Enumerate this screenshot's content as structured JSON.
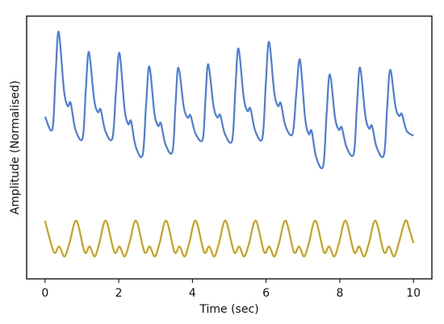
{
  "chart_data": {
    "type": "line",
    "xlabel": "Time (sec)",
    "ylabel": "Amplitude (Normalised)",
    "xlim": [
      -0.5,
      10.5
    ],
    "ylim": [
      -1.1,
      1.25
    ],
    "x_ticks": [
      0,
      2,
      4,
      6,
      8,
      10
    ],
    "x_tick_labels": [
      "0",
      "2",
      "4",
      "6",
      "8",
      "10"
    ],
    "y_ticks_shown": false,
    "grid": false,
    "legend": "none",
    "series": [
      {
        "color": "#4a7de0",
        "style": "pulsatile waveform (upper trace)",
        "peaks": [
          [
            0.37,
            1.11
          ],
          [
            1.19,
            0.93
          ],
          [
            2.02,
            0.92
          ],
          [
            2.83,
            0.8
          ],
          [
            3.62,
            0.79
          ],
          [
            4.43,
            0.82
          ],
          [
            5.25,
            0.96
          ],
          [
            6.08,
            1.02
          ],
          [
            6.92,
            0.86
          ],
          [
            7.73,
            0.73
          ],
          [
            8.55,
            0.79
          ],
          [
            9.37,
            0.77
          ]
        ],
        "troughs": [
          [
            0.2,
            0.24
          ],
          [
            1.02,
            0.16
          ],
          [
            1.83,
            0.16
          ],
          [
            2.65,
            0.01
          ],
          [
            3.46,
            0.04
          ],
          [
            4.28,
            0.15
          ],
          [
            5.08,
            0.14
          ],
          [
            5.9,
            0.16
          ],
          [
            6.72,
            0.2
          ],
          [
            7.55,
            -0.09
          ],
          [
            8.38,
            0.02
          ],
          [
            9.2,
            0.01
          ],
          [
            10.0,
            0.18
          ]
        ],
        "start": [
          0.0,
          0.35
        ]
      },
      {
        "color": "#c9a21b",
        "style": "oscillating waveform (lower trace)",
        "peaks": [
          [
            0.0,
            -0.58
          ],
          [
            0.85,
            -0.58
          ],
          [
            1.65,
            -0.58
          ],
          [
            2.47,
            -0.58
          ],
          [
            3.29,
            -0.58
          ],
          [
            4.09,
            -0.58
          ],
          [
            4.9,
            -0.58
          ],
          [
            5.72,
            -0.58
          ],
          [
            6.53,
            -0.58
          ],
          [
            7.34,
            -0.58
          ],
          [
            8.16,
            -0.58
          ],
          [
            8.97,
            -0.58
          ],
          [
            9.78,
            -0.58
          ]
        ],
        "trough_value": -0.88,
        "end": [
          10.0,
          -0.78
        ]
      }
    ]
  }
}
